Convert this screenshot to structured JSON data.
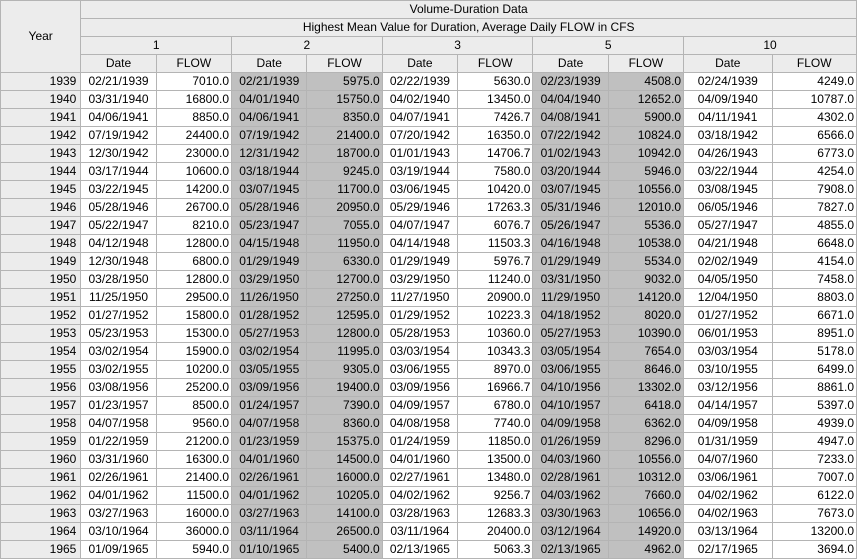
{
  "table": {
    "year_header": "Year",
    "title": "Volume-Duration Data",
    "subtitle": "Highest Mean Value for Duration, Average Daily FLOW in CFS",
    "durations": [
      "1",
      "2",
      "3",
      "5",
      "10"
    ],
    "date_header": "Date",
    "flow_header": "FLOW",
    "rows": [
      {
        "year": "1939",
        "cells": [
          [
            "02/21/1939",
            "7010.0"
          ],
          [
            "02/21/1939",
            "5975.0"
          ],
          [
            "02/22/1939",
            "5630.0"
          ],
          [
            "02/23/1939",
            "4508.0"
          ],
          [
            "02/24/1939",
            "4249.0"
          ]
        ]
      },
      {
        "year": "1940",
        "cells": [
          [
            "03/31/1940",
            "16800.0"
          ],
          [
            "04/01/1940",
            "15750.0"
          ],
          [
            "04/02/1940",
            "13450.0"
          ],
          [
            "04/04/1940",
            "12652.0"
          ],
          [
            "04/09/1940",
            "10787.0"
          ]
        ]
      },
      {
        "year": "1941",
        "cells": [
          [
            "04/06/1941",
            "8850.0"
          ],
          [
            "04/06/1941",
            "8350.0"
          ],
          [
            "04/07/1941",
            "7426.7"
          ],
          [
            "04/08/1941",
            "5900.0"
          ],
          [
            "04/11/1941",
            "4302.0"
          ]
        ]
      },
      {
        "year": "1942",
        "cells": [
          [
            "07/19/1942",
            "24400.0"
          ],
          [
            "07/19/1942",
            "21400.0"
          ],
          [
            "07/20/1942",
            "16350.0"
          ],
          [
            "07/22/1942",
            "10824.0"
          ],
          [
            "03/18/1942",
            "6566.0"
          ]
        ]
      },
      {
        "year": "1943",
        "cells": [
          [
            "12/30/1942",
            "23000.0"
          ],
          [
            "12/31/1942",
            "18700.0"
          ],
          [
            "01/01/1943",
            "14706.7"
          ],
          [
            "01/02/1943",
            "10942.0"
          ],
          [
            "04/26/1943",
            "6773.0"
          ]
        ]
      },
      {
        "year": "1944",
        "cells": [
          [
            "03/17/1944",
            "10600.0"
          ],
          [
            "03/18/1944",
            "9245.0"
          ],
          [
            "03/19/1944",
            "7580.0"
          ],
          [
            "03/20/1944",
            "5946.0"
          ],
          [
            "03/22/1944",
            "4254.0"
          ]
        ]
      },
      {
        "year": "1945",
        "cells": [
          [
            "03/22/1945",
            "14200.0"
          ],
          [
            "03/07/1945",
            "11700.0"
          ],
          [
            "03/06/1945",
            "10420.0"
          ],
          [
            "03/07/1945",
            "10556.0"
          ],
          [
            "03/08/1945",
            "7908.0"
          ]
        ]
      },
      {
        "year": "1946",
        "cells": [
          [
            "05/28/1946",
            "26700.0"
          ],
          [
            "05/28/1946",
            "20950.0"
          ],
          [
            "05/29/1946",
            "17263.3"
          ],
          [
            "05/31/1946",
            "12010.0"
          ],
          [
            "06/05/1946",
            "7827.0"
          ]
        ]
      },
      {
        "year": "1947",
        "cells": [
          [
            "05/22/1947",
            "8210.0"
          ],
          [
            "05/23/1947",
            "7055.0"
          ],
          [
            "04/07/1947",
            "6076.7"
          ],
          [
            "05/26/1947",
            "5536.0"
          ],
          [
            "05/27/1947",
            "4855.0"
          ]
        ]
      },
      {
        "year": "1948",
        "cells": [
          [
            "04/12/1948",
            "12800.0"
          ],
          [
            "04/15/1948",
            "11950.0"
          ],
          [
            "04/14/1948",
            "11503.3"
          ],
          [
            "04/16/1948",
            "10538.0"
          ],
          [
            "04/21/1948",
            "6648.0"
          ]
        ]
      },
      {
        "year": "1949",
        "cells": [
          [
            "12/30/1948",
            "6800.0"
          ],
          [
            "01/29/1949",
            "6330.0"
          ],
          [
            "01/29/1949",
            "5976.7"
          ],
          [
            "01/29/1949",
            "5534.0"
          ],
          [
            "02/02/1949",
            "4154.0"
          ]
        ]
      },
      {
        "year": "1950",
        "cells": [
          [
            "03/28/1950",
            "12800.0"
          ],
          [
            "03/29/1950",
            "12700.0"
          ],
          [
            "03/29/1950",
            "11240.0"
          ],
          [
            "03/31/1950",
            "9032.0"
          ],
          [
            "04/05/1950",
            "7458.0"
          ]
        ]
      },
      {
        "year": "1951",
        "cells": [
          [
            "11/25/1950",
            "29500.0"
          ],
          [
            "11/26/1950",
            "27250.0"
          ],
          [
            "11/27/1950",
            "20900.0"
          ],
          [
            "11/29/1950",
            "14120.0"
          ],
          [
            "12/04/1950",
            "8803.0"
          ]
        ]
      },
      {
        "year": "1952",
        "cells": [
          [
            "01/27/1952",
            "15800.0"
          ],
          [
            "01/28/1952",
            "12595.0"
          ],
          [
            "01/29/1952",
            "10223.3"
          ],
          [
            "04/18/1952",
            "8020.0"
          ],
          [
            "01/27/1952",
            "6671.0"
          ]
        ]
      },
      {
        "year": "1953",
        "cells": [
          [
            "05/23/1953",
            "15300.0"
          ],
          [
            "05/27/1953",
            "12800.0"
          ],
          [
            "05/28/1953",
            "10360.0"
          ],
          [
            "05/27/1953",
            "10390.0"
          ],
          [
            "06/01/1953",
            "8951.0"
          ]
        ]
      },
      {
        "year": "1954",
        "cells": [
          [
            "03/02/1954",
            "15900.0"
          ],
          [
            "03/02/1954",
            "11995.0"
          ],
          [
            "03/03/1954",
            "10343.3"
          ],
          [
            "03/05/1954",
            "7654.0"
          ],
          [
            "03/03/1954",
            "5178.0"
          ]
        ]
      },
      {
        "year": "1955",
        "cells": [
          [
            "03/02/1955",
            "10200.0"
          ],
          [
            "03/05/1955",
            "9305.0"
          ],
          [
            "03/06/1955",
            "8970.0"
          ],
          [
            "03/06/1955",
            "8646.0"
          ],
          [
            "03/10/1955",
            "6499.0"
          ]
        ]
      },
      {
        "year": "1956",
        "cells": [
          [
            "03/08/1956",
            "25200.0"
          ],
          [
            "03/09/1956",
            "19400.0"
          ],
          [
            "03/09/1956",
            "16966.7"
          ],
          [
            "04/10/1956",
            "13302.0"
          ],
          [
            "03/12/1956",
            "8861.0"
          ]
        ]
      },
      {
        "year": "1957",
        "cells": [
          [
            "01/23/1957",
            "8500.0"
          ],
          [
            "01/24/1957",
            "7390.0"
          ],
          [
            "04/09/1957",
            "6780.0"
          ],
          [
            "04/10/1957",
            "6418.0"
          ],
          [
            "04/14/1957",
            "5397.0"
          ]
        ]
      },
      {
        "year": "1958",
        "cells": [
          [
            "04/07/1958",
            "9560.0"
          ],
          [
            "04/07/1958",
            "8360.0"
          ],
          [
            "04/08/1958",
            "7740.0"
          ],
          [
            "04/09/1958",
            "6362.0"
          ],
          [
            "04/09/1958",
            "4939.0"
          ]
        ]
      },
      {
        "year": "1959",
        "cells": [
          [
            "01/22/1959",
            "21200.0"
          ],
          [
            "01/23/1959",
            "15375.0"
          ],
          [
            "01/24/1959",
            "11850.0"
          ],
          [
            "01/26/1959",
            "8296.0"
          ],
          [
            "01/31/1959",
            "4947.0"
          ]
        ]
      },
      {
        "year": "1960",
        "cells": [
          [
            "03/31/1960",
            "16300.0"
          ],
          [
            "04/01/1960",
            "14500.0"
          ],
          [
            "04/01/1960",
            "13500.0"
          ],
          [
            "04/03/1960",
            "10556.0"
          ],
          [
            "04/07/1960",
            "7233.0"
          ]
        ]
      },
      {
        "year": "1961",
        "cells": [
          [
            "02/26/1961",
            "21400.0"
          ],
          [
            "02/26/1961",
            "16000.0"
          ],
          [
            "02/27/1961",
            "13480.0"
          ],
          [
            "02/28/1961",
            "10312.0"
          ],
          [
            "03/06/1961",
            "7007.0"
          ]
        ]
      },
      {
        "year": "1962",
        "cells": [
          [
            "04/01/1962",
            "11500.0"
          ],
          [
            "04/01/1962",
            "10205.0"
          ],
          [
            "04/02/1962",
            "9256.7"
          ],
          [
            "04/03/1962",
            "7660.0"
          ],
          [
            "04/02/1962",
            "6122.0"
          ]
        ]
      },
      {
        "year": "1963",
        "cells": [
          [
            "03/27/1963",
            "16000.0"
          ],
          [
            "03/27/1963",
            "14100.0"
          ],
          [
            "03/28/1963",
            "12683.3"
          ],
          [
            "03/30/1963",
            "10656.0"
          ],
          [
            "04/02/1963",
            "7673.0"
          ]
        ]
      },
      {
        "year": "1964",
        "cells": [
          [
            "03/10/1964",
            "36000.0"
          ],
          [
            "03/11/1964",
            "26500.0"
          ],
          [
            "03/11/1964",
            "20400.0"
          ],
          [
            "03/12/1964",
            "14920.0"
          ],
          [
            "03/13/1964",
            "13200.0"
          ]
        ]
      },
      {
        "year": "1965",
        "cells": [
          [
            "01/09/1965",
            "5940.0"
          ],
          [
            "01/10/1965",
            "5400.0"
          ],
          [
            "02/13/1965",
            "5063.3"
          ],
          [
            "02/13/1965",
            "4962.0"
          ],
          [
            "02/17/1965",
            "3694.0"
          ]
        ]
      }
    ]
  },
  "colors": {
    "header_bg": "#ececec",
    "shaded_column_bg": "#c0c0c0",
    "grid": "#b4b4b4"
  }
}
